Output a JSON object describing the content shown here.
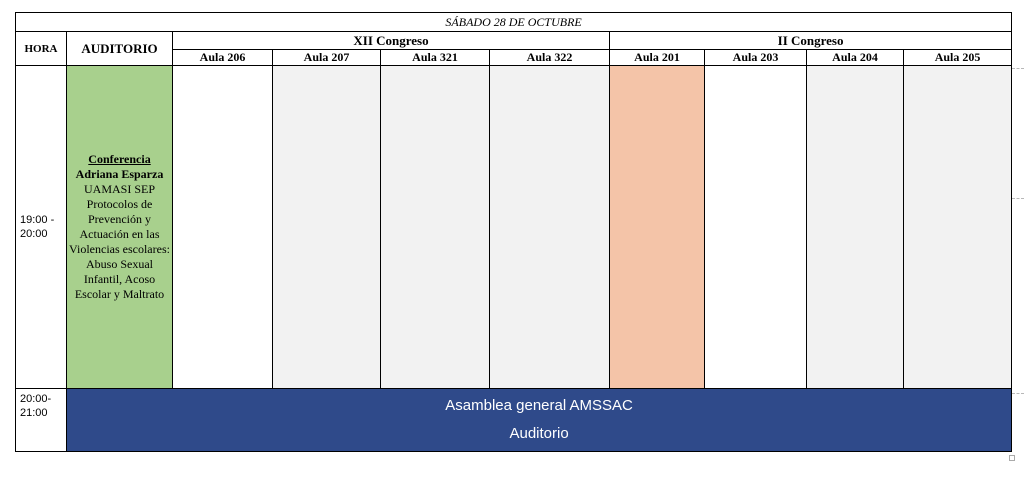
{
  "day_title": "SÁBADO 28 DE OCTUBRE",
  "headers": {
    "hora": "HORA",
    "auditorio": "AUDITORIO"
  },
  "congresos": [
    {
      "name": "XII Congreso",
      "aulas": [
        "Aula 206",
        "Aula 207",
        "Aula 321",
        "Aula 322"
      ]
    },
    {
      "name": "II Congreso",
      "aulas": [
        "Aula 201",
        "Aula 203",
        "Aula 204",
        "Aula 205"
      ]
    }
  ],
  "slot1": {
    "hora": "19:00 - 20:00",
    "auditorio": {
      "title": "Conferencia",
      "speaker": "Adriana Esparza",
      "description": "UAMASI SEP Protocolos de Prevención y Actuación en las Violencias escolares: Abuso Sexual Infantil, Acoso Escolar y Maltrato"
    },
    "colors": {
      "auditorio": "#a8d08d",
      "highlight": "#f4c4a8",
      "grey": "#f2f2f2"
    }
  },
  "slot2": {
    "hora": "20:00- 21:00",
    "event": "Asamblea general AMSSAC",
    "location": "Auditorio",
    "color": "#2f4a8a"
  }
}
